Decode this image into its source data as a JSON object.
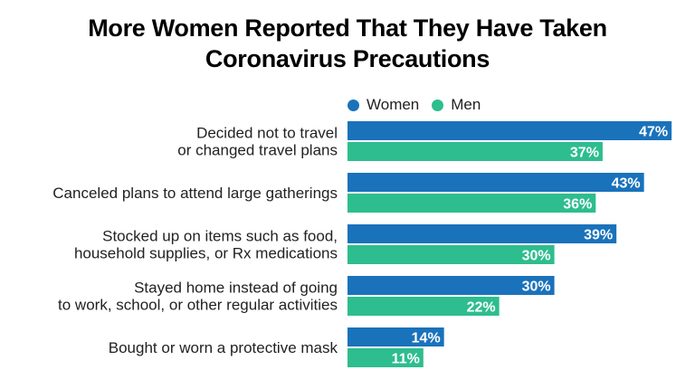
{
  "chart_data": {
    "type": "bar",
    "orientation": "horizontal",
    "title_lines": [
      "More Women Reported That They Have Taken",
      "Coronavirus Precautions"
    ],
    "categories": [
      [
        "Decided not to travel",
        "or changed travel plans"
      ],
      [
        "Canceled plans to attend large gatherings"
      ],
      [
        "Stocked up on items such as food,",
        "household supplies, or Rx medications"
      ],
      [
        "Stayed home instead of going",
        "to work, school, or other regular activities"
      ],
      [
        "Bought or worn a protective mask"
      ]
    ],
    "series": [
      {
        "name": "Women",
        "color": "#1a72bb",
        "values": [
          47,
          43,
          39,
          30,
          14
        ]
      },
      {
        "name": "Men",
        "color": "#2ebd8e",
        "values": [
          37,
          36,
          30,
          22,
          11
        ]
      }
    ],
    "value_suffix": "%",
    "xlim": [
      0,
      47
    ],
    "legend_position": "top",
    "grid": false,
    "xlabel": "",
    "ylabel": ""
  }
}
